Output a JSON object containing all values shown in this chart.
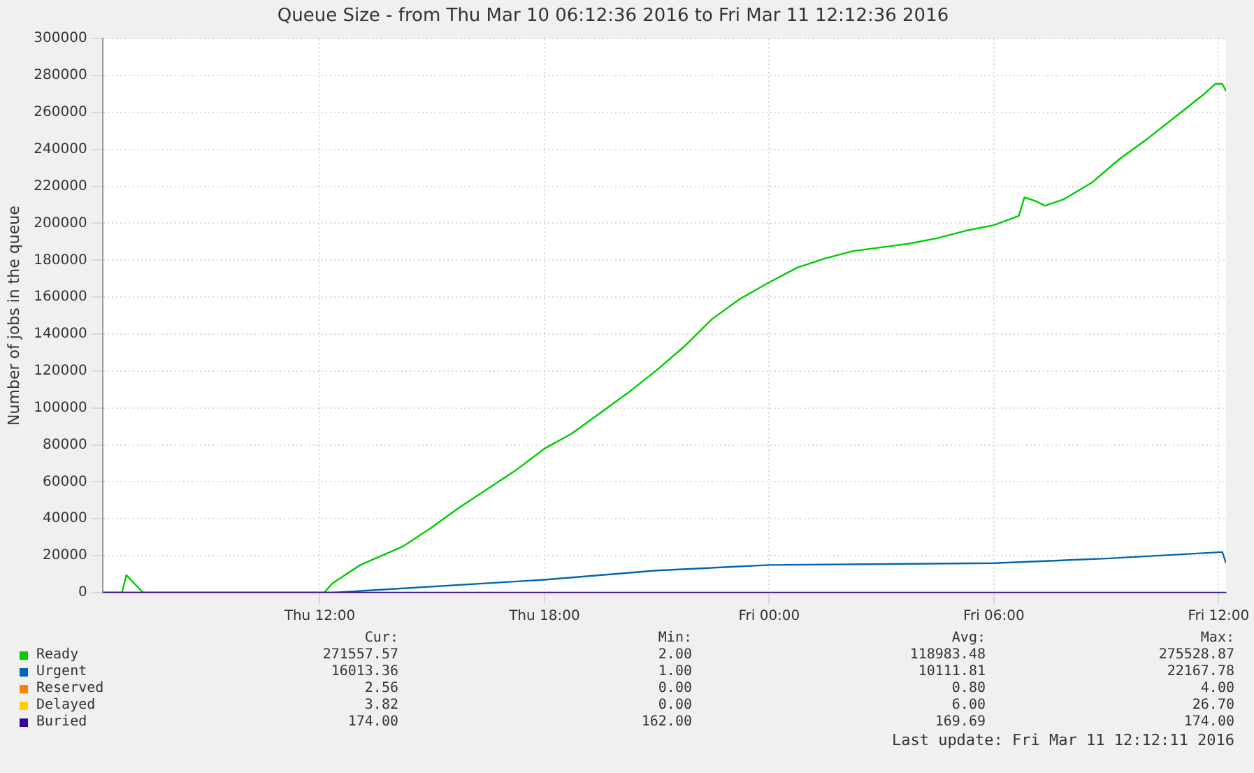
{
  "chart_data": {
    "type": "line",
    "title": "Queue Size - from Thu Mar 10 06:12:36 2016 to Fri Mar 11 12:12:36 2016",
    "ylabel": "Number of jobs in the queue",
    "xlim": [
      "2016-03-10T06:12",
      "2016-03-11T12:12"
    ],
    "xticks": [
      {
        "value": "2016-03-10T12:00",
        "label": "Thu 12:00"
      },
      {
        "value": "2016-03-10T18:00",
        "label": "Thu 18:00"
      },
      {
        "value": "2016-03-11T00:00",
        "label": "Fri 00:00"
      },
      {
        "value": "2016-03-11T06:00",
        "label": "Fri 06:00"
      },
      {
        "value": "2016-03-11T12:00",
        "label": "Fri 12:00"
      }
    ],
    "ylim": [
      0,
      300000
    ],
    "yticks": [
      0,
      20000,
      40000,
      60000,
      80000,
      100000,
      120000,
      140000,
      160000,
      180000,
      200000,
      220000,
      240000,
      260000,
      280000,
      300000
    ],
    "grid": true,
    "legend": "bottom",
    "marker": "none",
    "line_style": "solid",
    "series": [
      {
        "name": "Ready",
        "color": "#00cc00",
        "x": [
          "2016-03-10T06:13",
          "2016-03-10T06:43",
          "2016-03-10T06:50",
          "2016-03-10T07:17",
          "2016-03-10T12:07",
          "2016-03-10T12:20",
          "2016-03-10T13:05",
          "2016-03-10T14:13",
          "2016-03-10T14:58",
          "2016-03-10T15:43",
          "2016-03-10T16:28",
          "2016-03-10T17:13",
          "2016-03-10T18:00",
          "2016-03-10T18:43",
          "2016-03-10T19:28",
          "2016-03-10T20:13",
          "2016-03-10T20:58",
          "2016-03-10T21:43",
          "2016-03-10T22:28",
          "2016-03-10T23:13",
          "2016-03-11T00:00",
          "2016-03-11T00:45",
          "2016-03-11T01:30",
          "2016-03-11T02:15",
          "2016-03-11T03:00",
          "2016-03-11T03:45",
          "2016-03-11T04:30",
          "2016-03-11T05:15",
          "2016-03-11T06:00",
          "2016-03-11T06:40",
          "2016-03-11T06:49",
          "2016-03-11T07:07",
          "2016-03-11T07:22",
          "2016-03-11T07:52",
          "2016-03-11T08:37",
          "2016-03-11T09:22",
          "2016-03-11T10:07",
          "2016-03-11T10:52",
          "2016-03-11T11:37",
          "2016-03-11T11:55",
          "2016-03-11T12:06",
          "2016-03-11T12:12"
        ],
        "values": [
          0,
          0,
          9500,
          0,
          0,
          5000,
          15000,
          25000,
          35000,
          46000,
          56000,
          66000,
          78000,
          86000,
          97000,
          108000,
          120000,
          133000,
          148000,
          159000,
          168000,
          176000,
          181000,
          185000,
          187000,
          189000,
          192000,
          196000,
          199000,
          204000,
          214000,
          212000,
          209500,
          213000,
          222000,
          235000,
          246000,
          258000,
          270000,
          275500,
          275500,
          271500
        ]
      },
      {
        "name": "Urgent",
        "color": "#0066b3",
        "x": [
          "2016-03-10T06:13",
          "2016-03-10T12:20",
          "2016-03-10T18:00",
          "2016-03-10T21:00",
          "2016-03-11T00:00",
          "2016-03-11T06:00",
          "2016-03-11T09:00",
          "2016-03-11T12:06",
          "2016-03-11T12:12"
        ],
        "values": [
          0,
          0,
          7000,
          12000,
          15000,
          16000,
          18500,
          22000,
          16000
        ]
      },
      {
        "name": "Reserved",
        "color": "#ff8000"
      },
      {
        "name": "Delayed",
        "color": "#ffcc00"
      },
      {
        "name": "Buried",
        "color": "#330099",
        "x": [
          "2016-03-10T06:13",
          "2016-03-11T12:12"
        ],
        "values": [
          0,
          0
        ]
      }
    ],
    "annotations": [
      "Cur:",
      "Min:",
      "Avg:",
      "Max:",
      "271557.57",
      "2.00",
      "118983.48",
      "275528.87",
      "16013.36",
      "1.00",
      "10111.81",
      "22167.78",
      "2.56",
      "0.00",
      "0.80",
      "4.00",
      "3.82",
      "0.00",
      "6.00",
      "26.70",
      "174.00",
      "162.00",
      "169.69",
      "174.00",
      "Last update: Fri Mar 11 12:12:11 2016"
    ]
  }
}
